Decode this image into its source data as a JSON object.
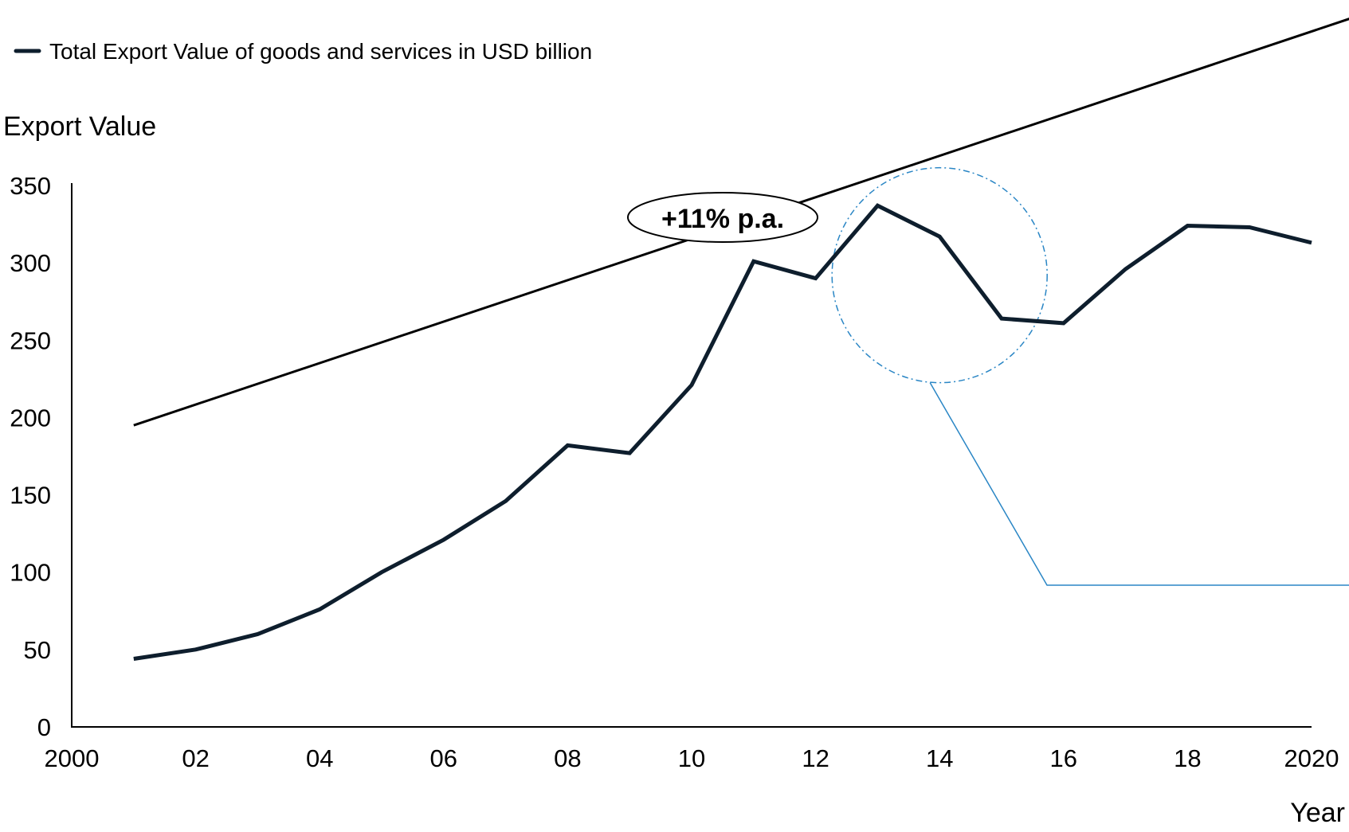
{
  "chart_data": {
    "type": "line",
    "title": "",
    "legend": {
      "position": "top-left",
      "entries": [
        {
          "label": "Total Export Value of goods and services in USD billion",
          "color": "#0e1e2d"
        }
      ]
    },
    "ylabel": "Export Value",
    "xlabel": "Year",
    "ylim": [
      0,
      350
    ],
    "xlim": [
      2000,
      2020
    ],
    "y_ticks": [
      0,
      50,
      100,
      150,
      200,
      250,
      300,
      350
    ],
    "y_tick_labels": [
      "0",
      "50",
      "100",
      "150",
      "200",
      "250",
      "300",
      "350"
    ],
    "x_ticks": [
      2000,
      2002,
      2004,
      2006,
      2008,
      2010,
      2012,
      2014,
      2016,
      2018,
      2020
    ],
    "x_tick_labels": [
      "2000",
      "02",
      "04",
      "06",
      "08",
      "10",
      "12",
      "14",
      "16",
      "18",
      "2020"
    ],
    "grid": false,
    "series": [
      {
        "name": "Total Export Value of goods and services in USD billion",
        "color": "#0e1e2d",
        "x": [
          2001,
          2002,
          2003,
          2004,
          2005,
          2006,
          2007,
          2008,
          2009,
          2010,
          2011,
          2012,
          2013,
          2014,
          2015,
          2016,
          2017,
          2018,
          2019,
          2020
        ],
        "values": [
          44,
          50,
          60,
          76,
          100,
          121,
          146,
          182,
          177,
          221,
          301,
          290,
          337,
          317,
          264,
          261,
          296,
          324,
          323,
          313
        ]
      }
    ],
    "trend_arrow": {
      "label": "+11% p.a.",
      "from": {
        "x": 2001,
        "y": 195
      },
      "to": {
        "x": 2021,
        "y": 463
      }
    },
    "highlight": {
      "shape": "dash-dot circle",
      "color": "#2a86c5",
      "center": {
        "x": 2014,
        "y": 292
      }
    }
  }
}
